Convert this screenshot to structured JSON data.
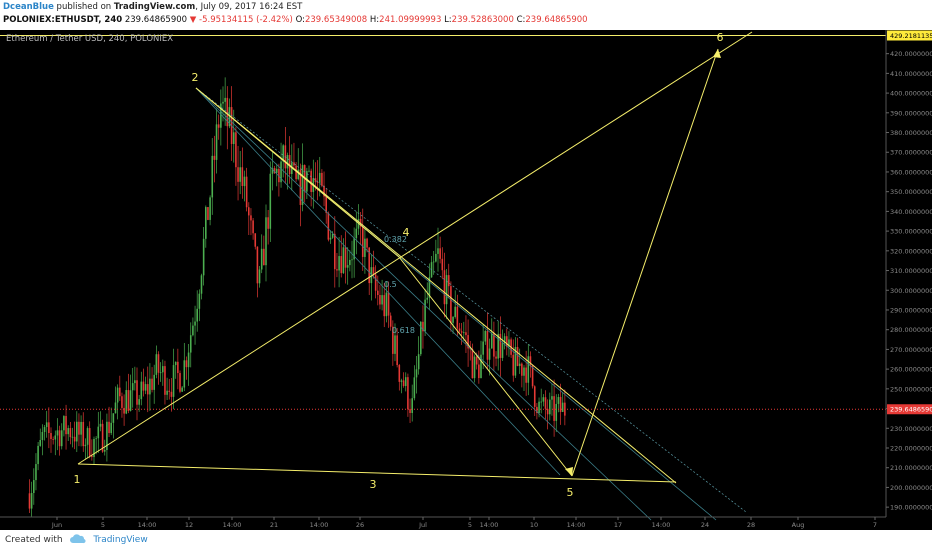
{
  "header": {
    "author": "DceanBlue",
    "publish_text": " published on ",
    "site": "TradingView.com",
    "publish_date": ", July 09, 2017 16:24 EST",
    "symbol": "POLONIEX:ETHUSDT, 240",
    "last_price": "239.64865900",
    "change_arrow": "▼",
    "change": "-5.95134115 (-2.42%)",
    "o_label": "O:",
    "o_value": "239.65349008",
    "h_label": "H:",
    "h_value": "241.09999993",
    "l_label": "L:",
    "l_value": "239.52863000",
    "c_label": "C:",
    "c_value": "239.64865900"
  },
  "footer": {
    "created_with": "Created with",
    "brand": "TradingView"
  },
  "colors": {
    "background": "#000000",
    "up": "#4caf50",
    "down": "#e53935",
    "drawing": "#f5ee6b",
    "fib": "#3b7f8a",
    "price_line": "#e53935",
    "badge": "#ffeb3b"
  },
  "chart_data": {
    "type": "candlestick",
    "title": "Ethereum / Tether USD, 240, POLONIEX",
    "ylim": [
      185,
      432
    ],
    "y_ticks": [
      190,
      200,
      210,
      220,
      230,
      240,
      250,
      260,
      270,
      280,
      290,
      300,
      310,
      320,
      330,
      340,
      350,
      360,
      370,
      380,
      390,
      400,
      410,
      420
    ],
    "y_tick_decimals": 8,
    "x_ticks": [
      "Jun",
      "5",
      "14:00",
      "12",
      "14:00",
      "21",
      "14:00",
      "26",
      "Jul",
      "5",
      "14:00",
      "10",
      "14:00",
      "17",
      "14:00",
      "24",
      "28",
      "Aug",
      "7"
    ],
    "price_line": 239.65,
    "horizontal_line": {
      "value": 429.21,
      "label": "429.21811351"
    },
    "close_path_estimate": [
      [
        "May 28",
        197
      ],
      [
        "May 29",
        225
      ],
      [
        "May 31",
        230
      ],
      [
        "Jun 2",
        222
      ],
      [
        "Jun 3",
        228
      ],
      [
        "Jun 4",
        245
      ],
      [
        "Jun 6",
        247
      ],
      [
        "Jun 7",
        260
      ],
      [
        "Jun 8",
        253
      ],
      [
        "Jun 9",
        258
      ],
      [
        "Jun 10",
        290
      ],
      [
        "Jun 11",
        340
      ],
      [
        "Jun 12",
        395
      ],
      [
        "Jun 13",
        375
      ],
      [
        "Jun 14",
        345
      ],
      [
        "Jun 15",
        300
      ],
      [
        "Jun 16",
        355
      ],
      [
        "Jun 17",
        365
      ],
      [
        "Jun 18",
        350
      ],
      [
        "Jun 19",
        362
      ],
      [
        "Jun 20",
        345
      ],
      [
        "Jun 21",
        320
      ],
      [
        "Jun 22",
        318
      ],
      [
        "Jun 23",
        328
      ],
      [
        "Jun 24",
        300
      ],
      [
        "Jun 25",
        290
      ],
      [
        "Jun 26",
        260
      ],
      [
        "Jun 27",
        240
      ],
      [
        "Jun 28",
        290
      ],
      [
        "Jun 29",
        318
      ],
      [
        "Jun 30",
        290
      ],
      [
        "Jul 1",
        280
      ],
      [
        "Jul 2",
        258
      ],
      [
        "Jul 3",
        275
      ],
      [
        "Jul 4",
        272
      ],
      [
        "Jul 5",
        262
      ],
      [
        "Jul 6",
        262
      ],
      [
        "Jul 7",
        240
      ],
      [
        "Jul 8",
        238
      ],
      [
        "Jul 9",
        240
      ]
    ],
    "wave_labels": [
      {
        "label": "1",
        "date": "Jun 3",
        "value": 205
      },
      {
        "label": "2",
        "date": "Jun 12",
        "value": 412
      },
      {
        "label": "3",
        "date": "Jun 27",
        "value": 203
      },
      {
        "label": "4",
        "date": "Jun 29",
        "value": 322
      },
      {
        "label": "5",
        "date": "Jul 13",
        "value": 195
      },
      {
        "label": "6",
        "date": "Jul 25",
        "value": 437
      }
    ],
    "fib_labels": [
      "0.382",
      "0.5",
      "0.618"
    ]
  }
}
